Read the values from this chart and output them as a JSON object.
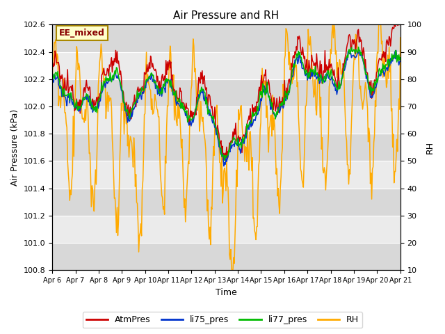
{
  "title": "Air Pressure and RH",
  "xlabel": "Time",
  "ylabel_left": "Air Pressure (kPa)",
  "ylabel_right": "RH",
  "ylim_left": [
    100.8,
    102.6
  ],
  "ylim_right": [
    10,
    100
  ],
  "annotation": "EE_mixed",
  "legend": [
    "AtmPres",
    "li75_pres",
    "li77_pres",
    "RH"
  ],
  "line_colors": [
    "#cc0000",
    "#0033cc",
    "#00bb00",
    "#ffaa00"
  ],
  "bg_color": "#ffffff",
  "plot_bg": "#e0e0e0",
  "n_points": 500,
  "yticks_left": [
    100.8,
    101.0,
    101.2,
    101.4,
    101.6,
    101.8,
    102.0,
    102.2,
    102.4,
    102.6
  ],
  "yticks_right": [
    10,
    20,
    30,
    40,
    50,
    60,
    70,
    80,
    90,
    100
  ],
  "xtick_labels": [
    "Apr 6",
    "Apr 7",
    "Apr 8",
    "Apr 9",
    "Apr 10",
    "Apr 11",
    "Apr 12",
    "Apr 13",
    "Apr 14",
    "Apr 15",
    "Apr 16",
    "Apr 17",
    "Apr 18",
    "Apr 19",
    "Apr 20",
    "Apr 21"
  ],
  "band_pairs": [
    [
      100.8,
      101.0,
      "#d8d8d8"
    ],
    [
      101.0,
      101.2,
      "#ebebeb"
    ],
    [
      101.2,
      101.4,
      "#d8d8d8"
    ],
    [
      101.4,
      101.6,
      "#ebebeb"
    ],
    [
      101.6,
      101.8,
      "#d8d8d8"
    ],
    [
      101.8,
      102.0,
      "#ebebeb"
    ],
    [
      102.0,
      102.2,
      "#d8d8d8"
    ],
    [
      102.2,
      102.4,
      "#ebebeb"
    ],
    [
      102.4,
      102.6,
      "#d8d8d8"
    ]
  ],
  "annotation_fc": "#ffffcc",
  "annotation_ec": "#aa8800",
  "annotation_tc": "#880000"
}
